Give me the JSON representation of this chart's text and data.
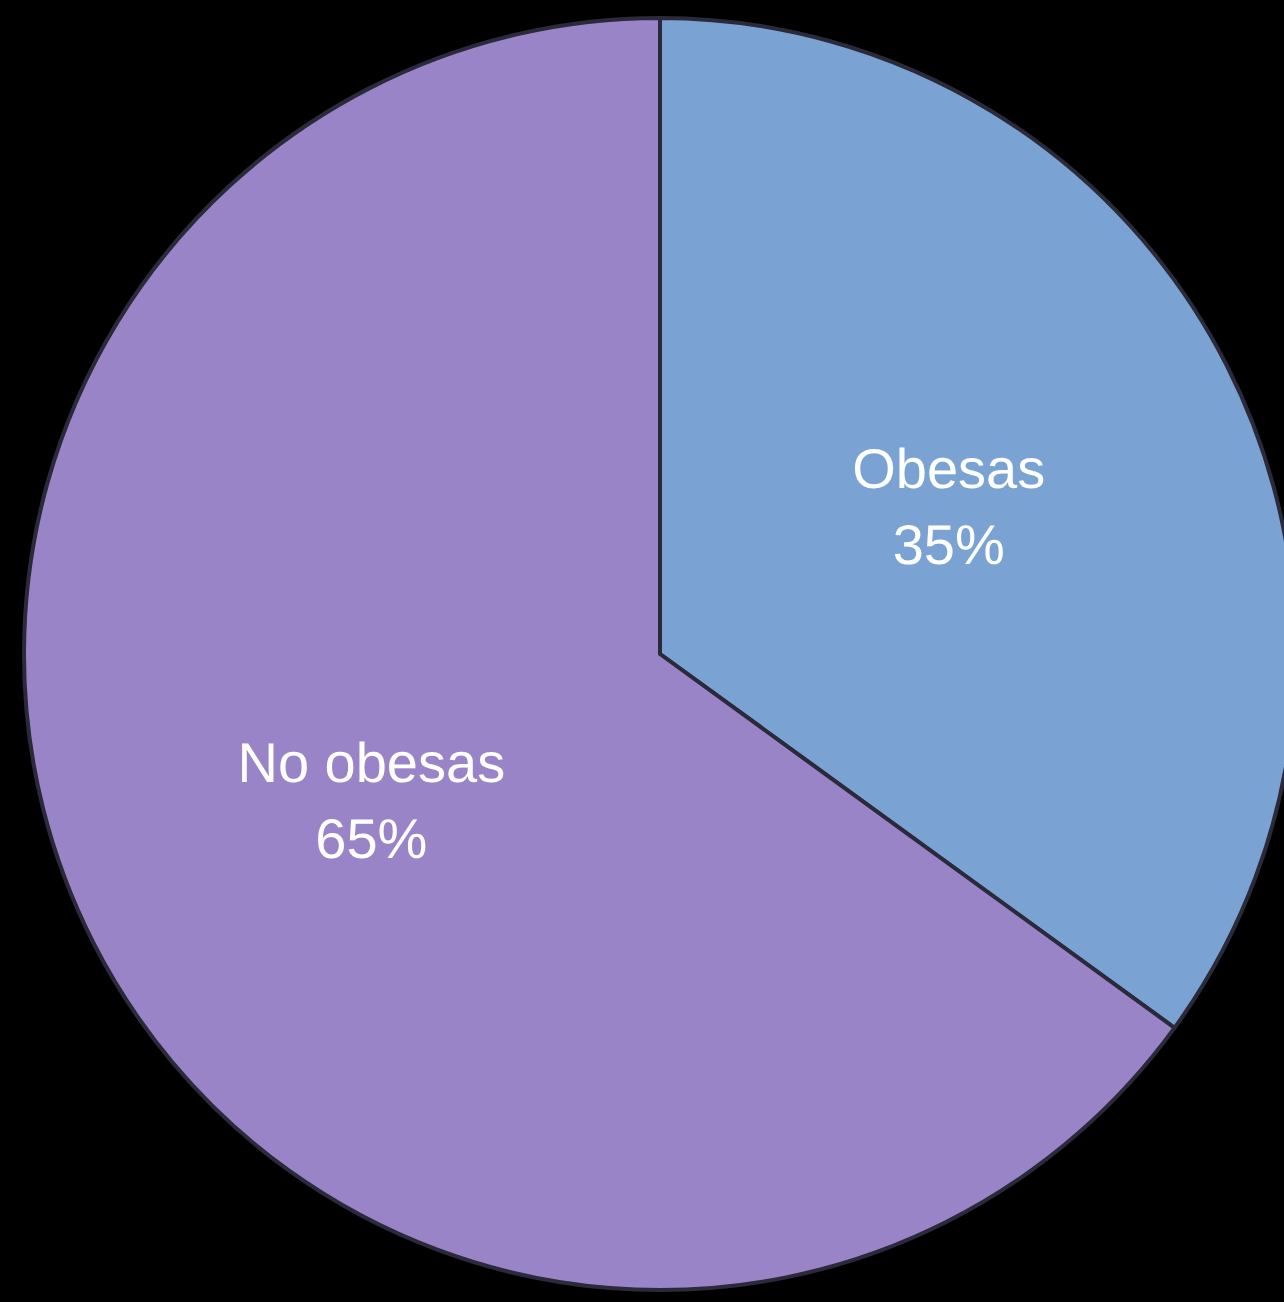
{
  "chart_data": {
    "type": "pie",
    "categories": [
      "Obesas",
      "No obesas"
    ],
    "values": [
      35,
      65
    ],
    "colors": [
      "#7aa2d2",
      "#9a84c8"
    ],
    "value_labels": [
      "35%",
      "65%"
    ],
    "legend": false
  }
}
